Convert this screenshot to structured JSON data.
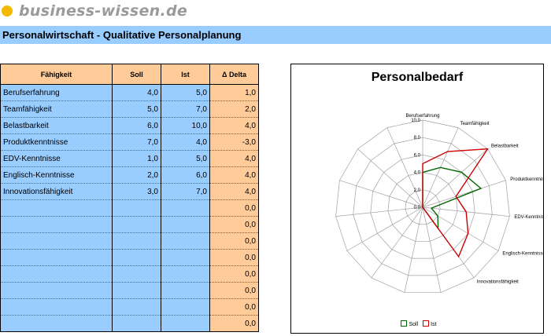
{
  "logo": {
    "text": "business-wissen.de",
    "icon": "sun-dot-icon",
    "color": "#f5b800"
  },
  "page_title": "Personalwirtschaft - Qualitative Personalplanung",
  "table": {
    "headers": [
      "Fähigkeit",
      "Soll",
      "Ist",
      "Δ Delta"
    ],
    "rows": [
      [
        "Berufserfahrung",
        "4,0",
        "5,0",
        "1,0"
      ],
      [
        "Teamfähigkeit",
        "5,0",
        "7,0",
        "2,0"
      ],
      [
        "Belastbarkeit",
        "6,0",
        "10,0",
        "4,0"
      ],
      [
        "Produktkenntnisse",
        "7,0",
        "4,0",
        "-3,0"
      ],
      [
        "EDV-Kenntnisse",
        "1,0",
        "5,0",
        "4,0"
      ],
      [
        "Englisch-Kenntnisse",
        "2,0",
        "6,0",
        "4,0"
      ],
      [
        "Innovationsfähigkeit",
        "3,0",
        "7,0",
        "4,0"
      ],
      [
        "",
        "",
        "",
        "0,0"
      ],
      [
        "",
        "",
        "",
        "0,0"
      ],
      [
        "",
        "",
        "",
        "0,0"
      ],
      [
        "",
        "",
        "",
        "0,0"
      ],
      [
        "",
        "",
        "",
        "0,0"
      ],
      [
        "",
        "",
        "",
        "0,0"
      ],
      [
        "",
        "",
        "",
        "0,0"
      ],
      [
        "",
        "",
        "",
        "0,0"
      ]
    ],
    "colors": {
      "label_col": "#99ccff",
      "delta_col": "#ffcc99",
      "header": "#ffcc99"
    }
  },
  "chart_data": {
    "type": "radar",
    "title": "Personalbedarf",
    "axes": [
      "Berufserfahrung",
      "Teamfähigkeit",
      "Belastbarkeit",
      "Produktkenntnisse",
      "EDV-Kenntnisse",
      "Englisch-Kenntnisse",
      "Innovationsfähigkeit",
      "",
      "",
      "",
      "",
      "",
      "",
      "",
      ""
    ],
    "series": [
      {
        "name": "Soll",
        "color": "#006600",
        "values": [
          4,
          5,
          6,
          7,
          1,
          2,
          3,
          0,
          0,
          0,
          0,
          0,
          0,
          0,
          0
        ]
      },
      {
        "name": "Ist",
        "color": "#cc0000",
        "values": [
          5,
          7,
          10,
          4,
          5,
          6,
          7,
          0,
          0,
          0,
          0,
          0,
          0,
          0,
          0
        ]
      }
    ],
    "rmax": 10,
    "ticks": [
      "0,0",
      "2,0",
      "4,0",
      "6,0",
      "8,0",
      "10,0"
    ],
    "tick_values": [
      0,
      2,
      4,
      6,
      8,
      10
    ],
    "legend_position": "bottom"
  }
}
